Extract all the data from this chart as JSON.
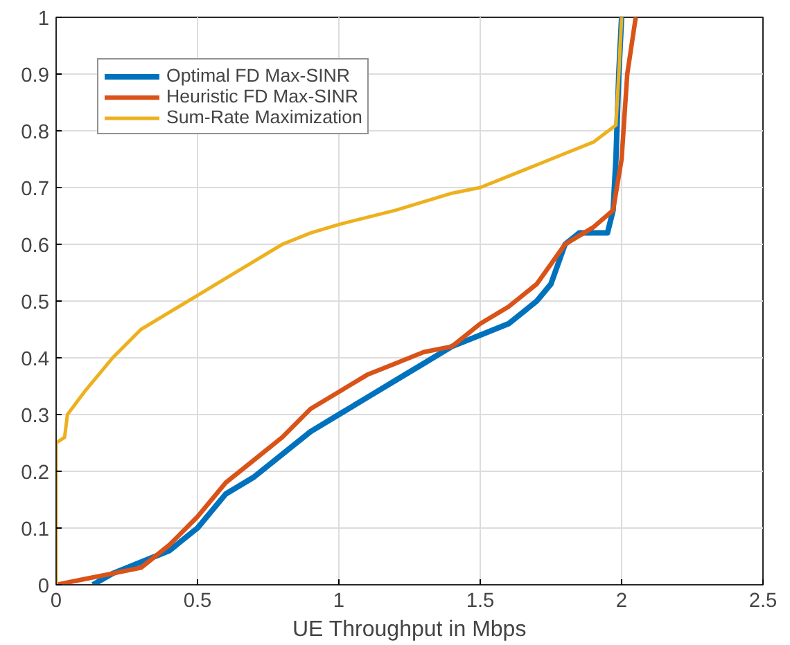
{
  "chart_data": {
    "type": "line",
    "xlabel": "UE Throughput in Mbps",
    "xlim": [
      0,
      2.5
    ],
    "ylim": [
      0,
      1
    ],
    "xticks": [
      0,
      0.5,
      1,
      1.5,
      2,
      2.5
    ],
    "yticks": [
      0,
      0.1,
      0.2,
      0.3,
      0.4,
      0.5,
      0.6,
      0.7,
      0.8,
      0.9,
      1
    ],
    "grid": true,
    "legend": "top left",
    "line_style": "solid",
    "series": [
      {
        "name": "Optimal FD Max-SINR",
        "color": "#0072bd",
        "x": [
          0.13,
          0.2,
          0.3,
          0.4,
          0.5,
          0.6,
          0.7,
          0.8,
          0.9,
          1.0,
          1.1,
          1.2,
          1.3,
          1.4,
          1.5,
          1.6,
          1.7,
          1.75,
          1.8,
          1.85,
          1.95,
          1.97,
          1.98,
          1.99,
          2.0
        ],
        "values": [
          0,
          0.02,
          0.04,
          0.06,
          0.1,
          0.16,
          0.19,
          0.23,
          0.27,
          0.3,
          0.33,
          0.36,
          0.39,
          0.42,
          0.44,
          0.46,
          0.5,
          0.53,
          0.6,
          0.62,
          0.62,
          0.66,
          0.75,
          0.9,
          1.0
        ]
      },
      {
        "name": "Heuristic FD Max-SINR",
        "color": "#d95319",
        "x": [
          0,
          0.1,
          0.2,
          0.3,
          0.4,
          0.5,
          0.6,
          0.7,
          0.8,
          0.9,
          1.0,
          1.1,
          1.2,
          1.3,
          1.4,
          1.5,
          1.6,
          1.7,
          1.8,
          1.9,
          1.97,
          2.0,
          2.02,
          2.05
        ],
        "values": [
          0,
          0.01,
          0.02,
          0.03,
          0.07,
          0.12,
          0.18,
          0.22,
          0.26,
          0.31,
          0.34,
          0.37,
          0.39,
          0.41,
          0.42,
          0.46,
          0.49,
          0.53,
          0.6,
          0.63,
          0.66,
          0.75,
          0.9,
          1.0
        ]
      },
      {
        "name": "Sum-Rate Maximization",
        "color": "#edb120",
        "x": [
          0,
          0,
          0.03,
          0.04,
          0.1,
          0.2,
          0.3,
          0.4,
          0.5,
          0.6,
          0.7,
          0.8,
          0.9,
          1.0,
          1.2,
          1.4,
          1.5,
          1.6,
          1.7,
          1.8,
          1.9,
          1.98,
          1.99,
          2.0
        ],
        "values": [
          0,
          0.25,
          0.26,
          0.3,
          0.34,
          0.4,
          0.45,
          0.48,
          0.51,
          0.54,
          0.57,
          0.6,
          0.62,
          0.635,
          0.66,
          0.69,
          0.7,
          0.72,
          0.74,
          0.76,
          0.78,
          0.81,
          0.9,
          1.0
        ]
      }
    ]
  }
}
